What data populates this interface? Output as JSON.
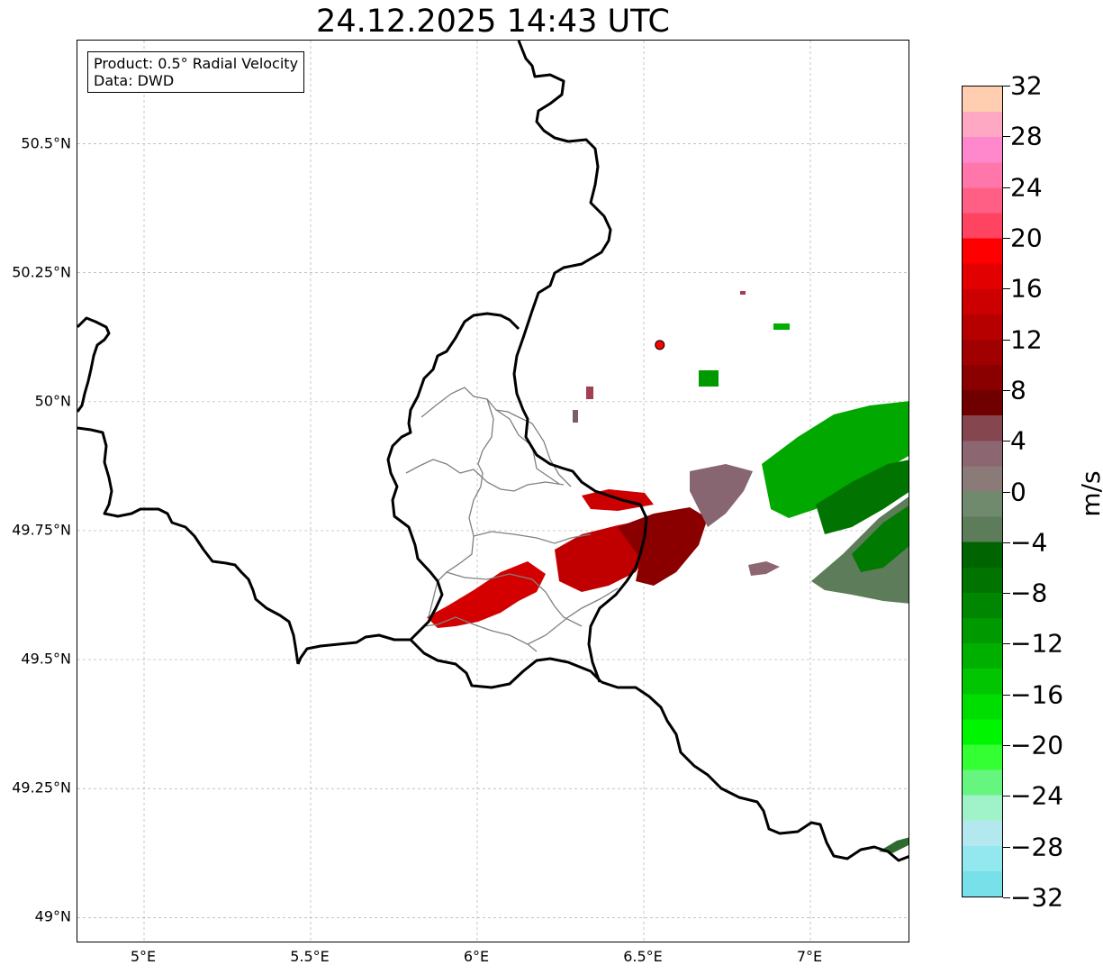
{
  "title": "24.12.2025 14:43 UTC",
  "info": {
    "product": "Product: 0.5° Radial Velocity",
    "source": "Data: DWD"
  },
  "map": {
    "lon_range": [
      4.8,
      7.3
    ],
    "lat_range": [
      48.95,
      50.7
    ],
    "lat_ticks": [
      {
        "value": 50.5,
        "label": "50.5°N"
      },
      {
        "value": 50.25,
        "label": "50.25°N"
      },
      {
        "value": 50.0,
        "label": "50°N"
      },
      {
        "value": 49.75,
        "label": "49.75°N"
      },
      {
        "value": 49.5,
        "label": "49.5°N"
      },
      {
        "value": 49.25,
        "label": "49.25°N"
      },
      {
        "value": 49.0,
        "label": "49°N"
      }
    ],
    "lon_ticks": [
      {
        "value": 5.0,
        "label": "5°E"
      },
      {
        "value": 5.5,
        "label": "5.5°E"
      },
      {
        "value": 6.0,
        "label": "6°E"
      },
      {
        "value": 6.5,
        "label": "6.5°E"
      },
      {
        "value": 7.0,
        "label": "7°E"
      }
    ],
    "radar_site": {
      "lon": 6.548,
      "lat": 50.11,
      "color": "#ff0000"
    },
    "gridlines": true
  },
  "colorbar": {
    "unit": "m/s",
    "min": -32,
    "max": 32,
    "tick_labels": [
      "32",
      "28",
      "24",
      "20",
      "16",
      "12",
      "8",
      "4",
      "0",
      "−4",
      "−8",
      "−12",
      "−16",
      "−20",
      "−24",
      "−28",
      "−32"
    ],
    "colors_top_to_bottom": [
      "#ffcdb0",
      "#ffa8c4",
      "#ff88cc",
      "#ff77aa",
      "#ff5f85",
      "#ff4462",
      "#ff0000",
      "#e20000",
      "#cc0000",
      "#b60000",
      "#a00000",
      "#8a0000",
      "#700000",
      "#864650",
      "#8c6671",
      "#8a7b78",
      "#6f8a6d",
      "#5d7c59",
      "#006400",
      "#007300",
      "#008600",
      "#009a00",
      "#00b000",
      "#00c500",
      "#00dd00",
      "#00f500",
      "#33ff33",
      "#66f57f",
      "#a0f2c8",
      "#b2e8ee",
      "#92e8ee",
      "#77e0e8"
    ]
  }
}
